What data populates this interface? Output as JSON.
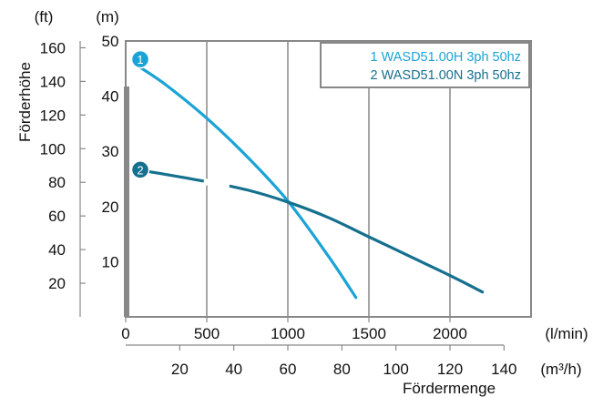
{
  "chart_data": {
    "type": "line",
    "ylabel": "Förderhöhe",
    "xlabel": "Fördermenge",
    "y_unit_m": "(m)",
    "y_unit_ft": "(ft)",
    "x_unit_lmin": "(l/min)",
    "x_unit_m3h": "(m³/h)",
    "xlim_lmin": [
      0,
      2500
    ],
    "ylim_m": [
      0,
      50
    ],
    "grid": "vertical",
    "legend_position": "top-right",
    "y_ticks_m": [
      "10",
      "20",
      "30",
      "40",
      "50"
    ],
    "y_ticks_ft": [
      "20",
      "40",
      "60",
      "80",
      "100",
      "120",
      "140",
      "160"
    ],
    "x_ticks_lmin": [
      "0",
      "500",
      "1000",
      "1500",
      "2000"
    ],
    "x_ticks_m3h": [
      "20",
      "40",
      "60",
      "80",
      "100",
      "120",
      "140"
    ],
    "series": [
      {
        "name": "1 WASD51.00H 3ph 50hz",
        "marker_label": "1",
        "color": "#1ba3d6",
        "points": [
          [
            0,
            47
          ],
          [
            250,
            42
          ],
          [
            500,
            36
          ],
          [
            750,
            29
          ],
          [
            1000,
            21
          ],
          [
            1250,
            11
          ],
          [
            1420,
            3.5
          ]
        ]
      },
      {
        "name": "2 WASD51.00N 3ph 50hz",
        "marker_label": "2",
        "color": "#15708f",
        "points": [
          [
            0,
            27
          ],
          [
            250,
            25.8
          ],
          [
            500,
            24.5
          ],
          [
            750,
            23
          ],
          [
            1000,
            20.8
          ],
          [
            1250,
            18
          ],
          [
            1500,
            14.5
          ],
          [
            1750,
            11
          ],
          [
            2000,
            7.5
          ],
          [
            2200,
            4.5
          ]
        ]
      }
    ]
  }
}
